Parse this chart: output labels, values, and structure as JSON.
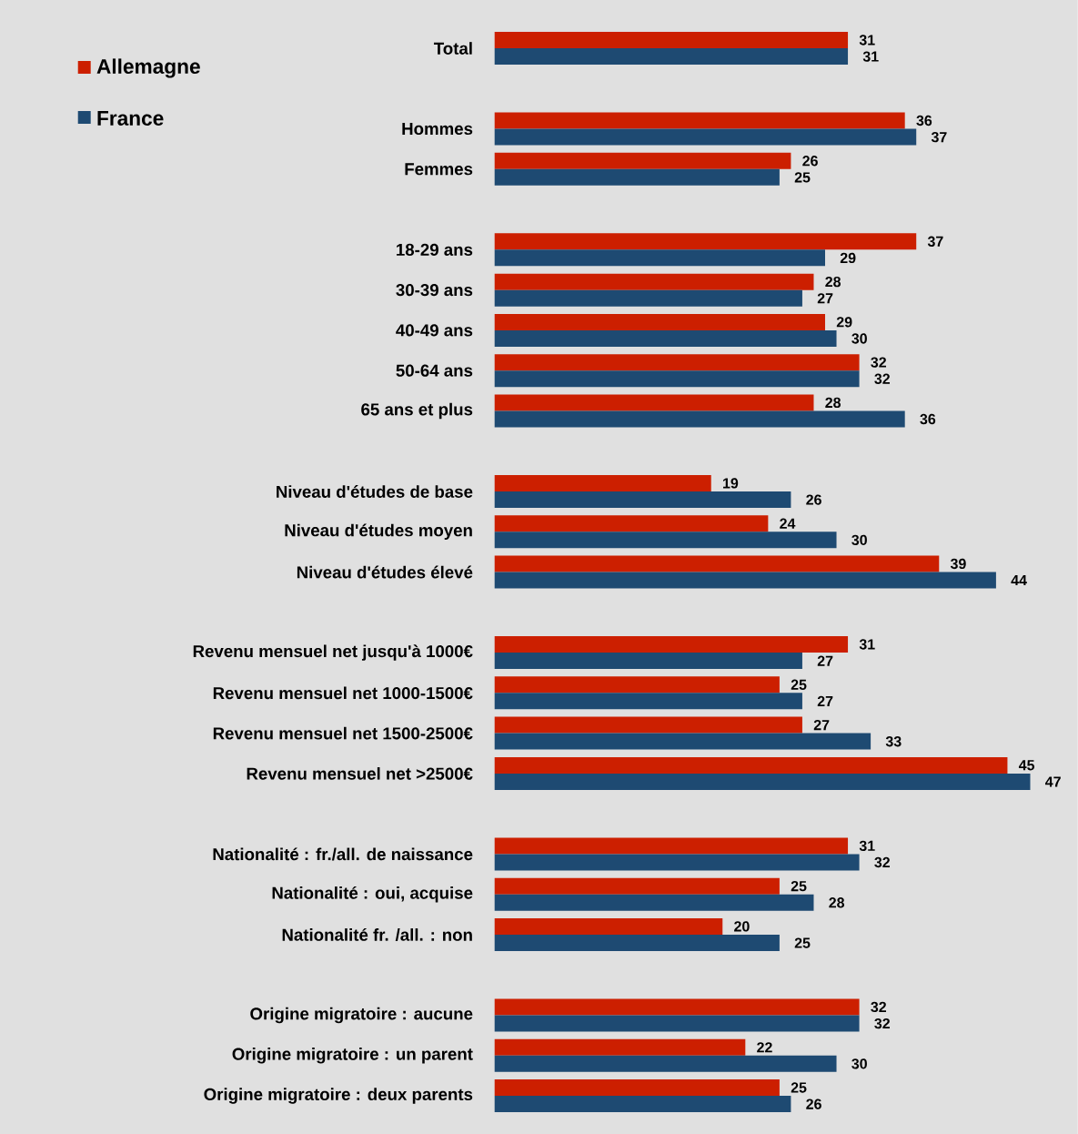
{
  "chart_data": {
    "type": "bar",
    "orientation": "horizontal",
    "data_labels": true,
    "legend": "top left",
    "tick_labels": "y",
    "categories": [
      "Total",
      null,
      "Hommes",
      "Femmes",
      null,
      "18-29 ans",
      "30-39 ans",
      "40-49 ans",
      "50-64 ans",
      "65 ans et plus",
      null,
      "Niveau d'études de base",
      "Niveau d'études moyen",
      "Niveau d'études élevé",
      null,
      "Revenu mensuel net jusqu'à 1000€",
      "Revenu mensuel net 1000-1500€",
      "Revenu mensuel net 1500-2500€",
      "Revenu mensuel net >2500€",
      null,
      "Nationalité : fr./all. de naissance",
      "Nationalité : oui, acquise",
      "Nationalité fr. /all. : non",
      null,
      "Origine migratoire : aucune",
      "Origine migratoire : un parent",
      "Origine migratoire : deux parents"
    ],
    "series": [
      {
        "name": "Allemagne",
        "color": "#cc1f00",
        "values": [
          31,
          null,
          36,
          26,
          null,
          37,
          28,
          29,
          32,
          28,
          null,
          19,
          24,
          39,
          null,
          31,
          25,
          27,
          45,
          null,
          31,
          25,
          20,
          null,
          32,
          22,
          25
        ]
      },
      {
        "name": "France",
        "color": "#1e4a72",
        "values": [
          31,
          null,
          37,
          25,
          null,
          29,
          27,
          30,
          32,
          36,
          null,
          26,
          30,
          44,
          null,
          27,
          27,
          33,
          47,
          null,
          32,
          28,
          25,
          null,
          32,
          30,
          26
        ]
      }
    ]
  }
}
